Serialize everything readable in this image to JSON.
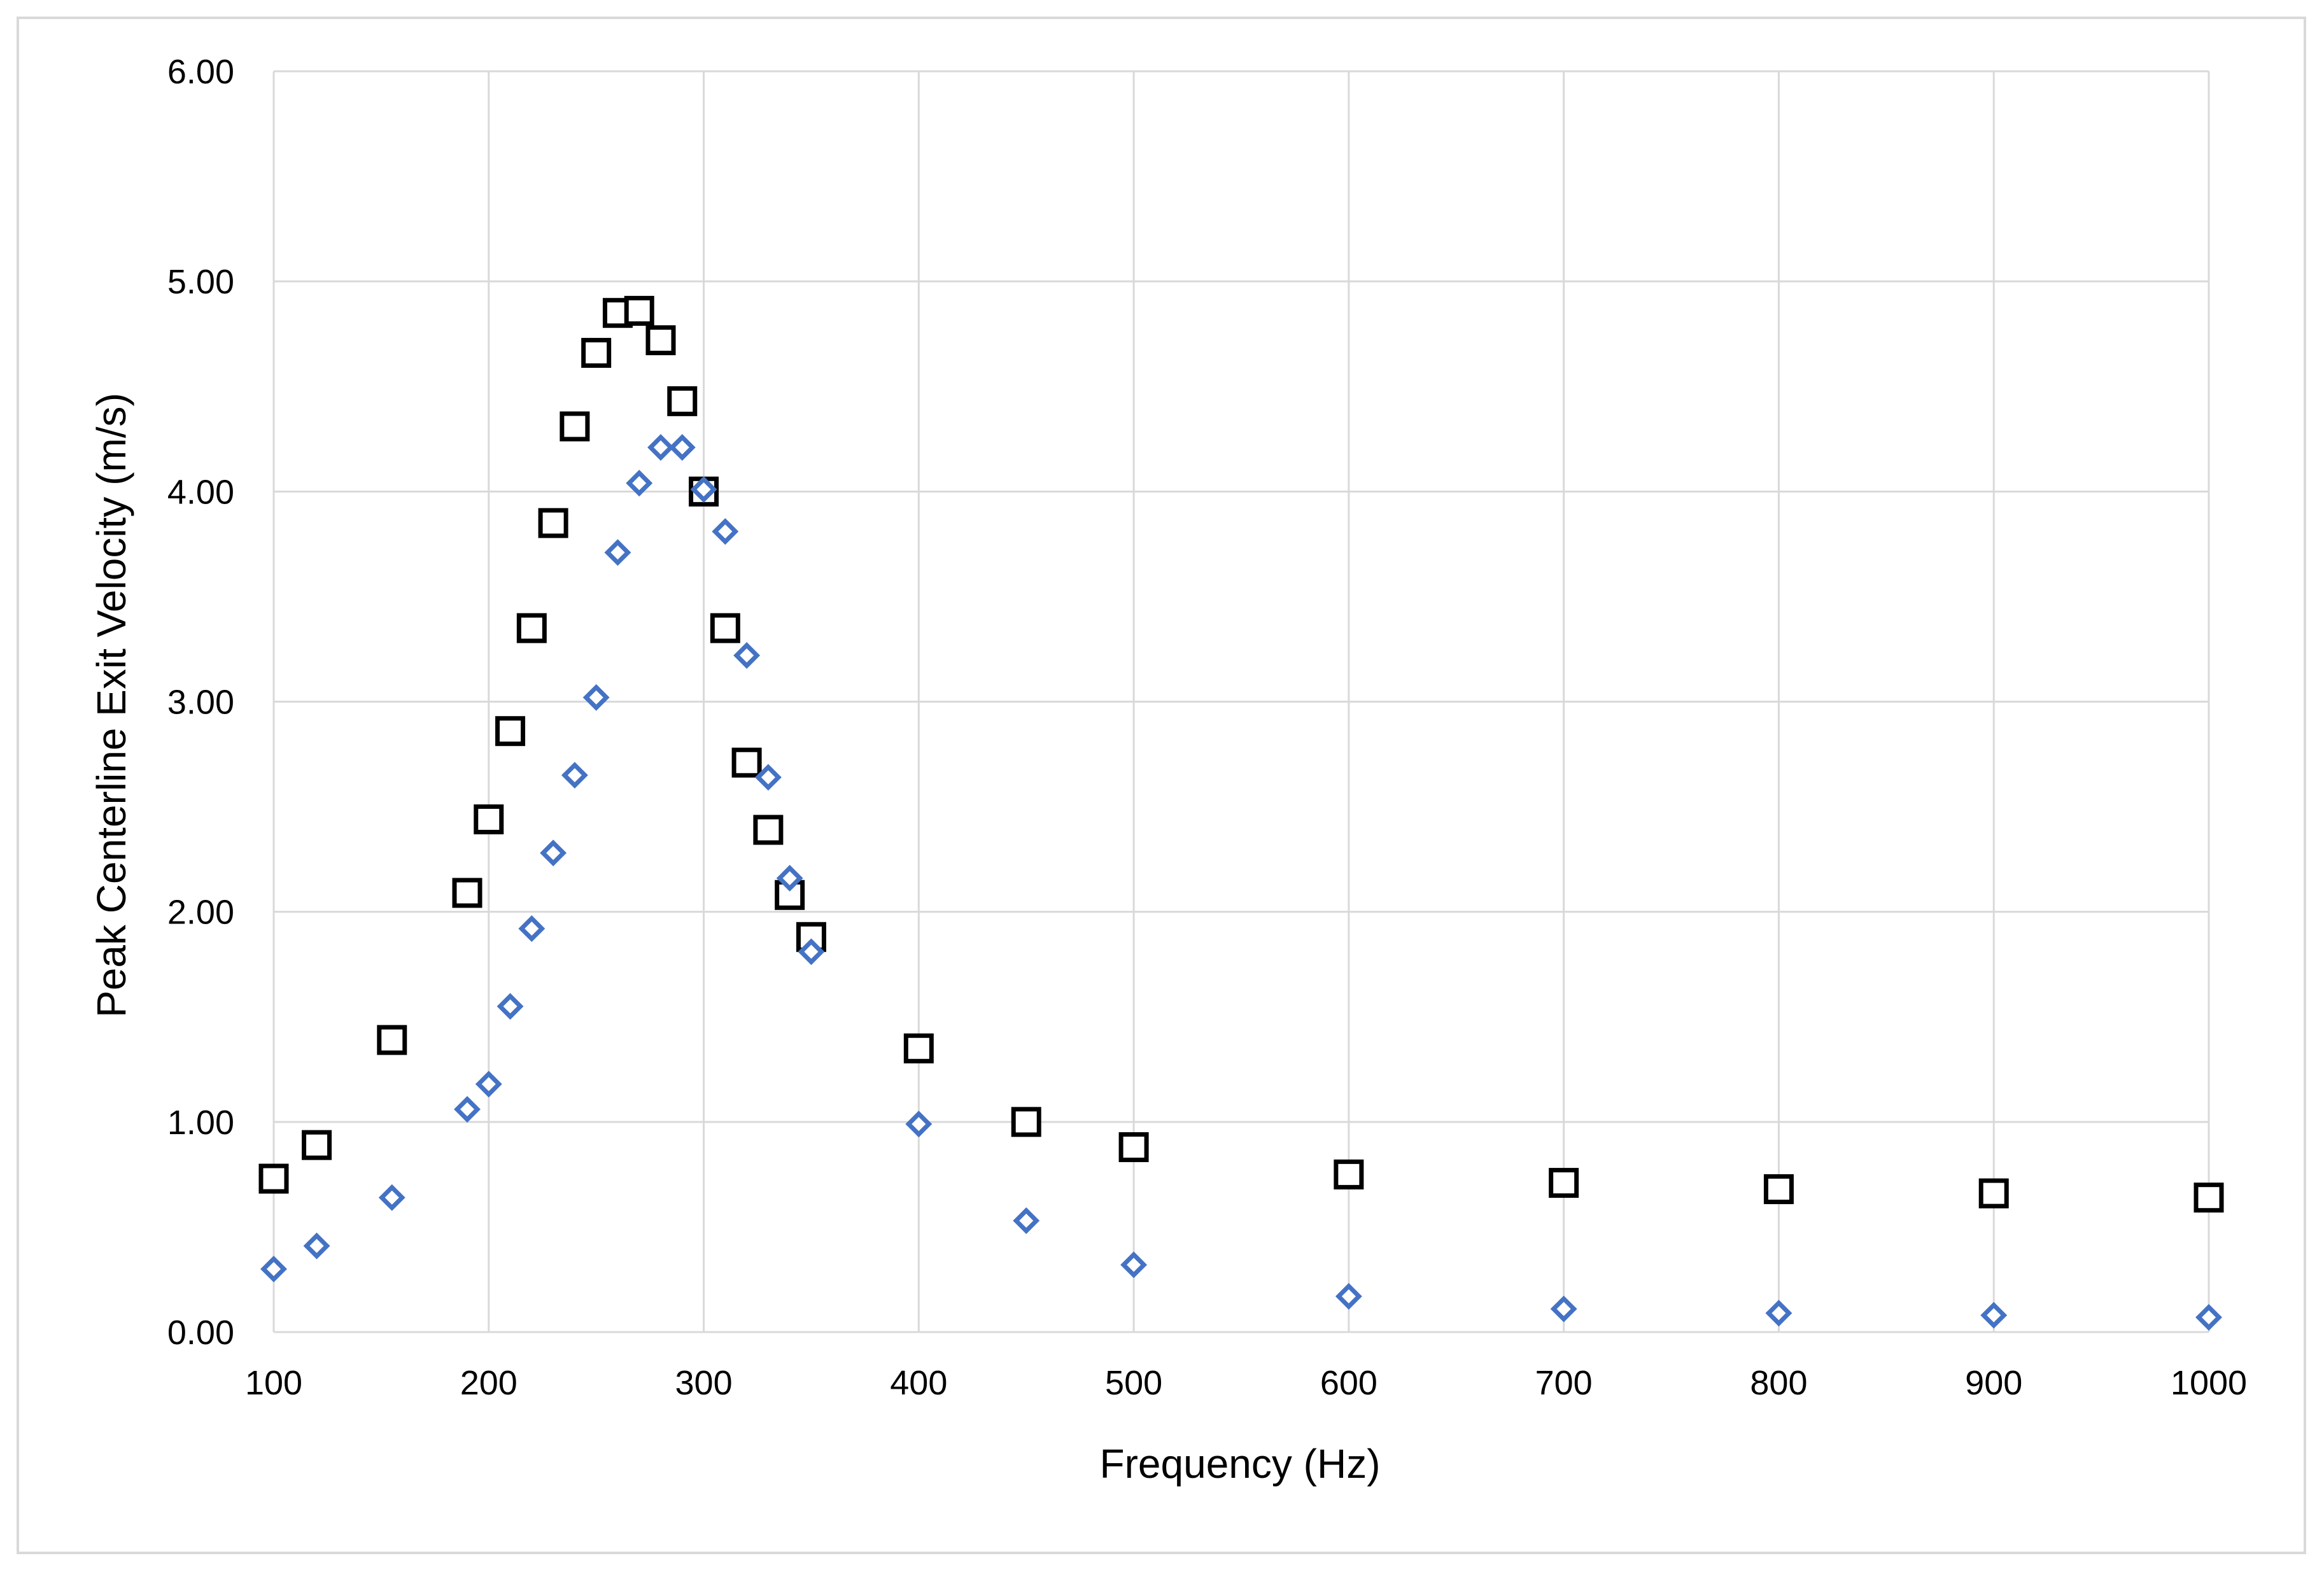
{
  "chart_data": {
    "type": "scatter",
    "title": "",
    "xlabel": "Frequency (Hz)",
    "ylabel": "Peak Centerline Exit Velocity (m/s)",
    "xlim": [
      100,
      1000
    ],
    "ylim": [
      0,
      6
    ],
    "x_ticks": [
      100,
      200,
      300,
      400,
      500,
      600,
      700,
      800,
      900,
      1000
    ],
    "x_tick_labels": [
      "100",
      "200",
      "300",
      "400",
      "500",
      "600",
      "700",
      "800",
      "900",
      "1000"
    ],
    "y_ticks": [
      0,
      1,
      2,
      3,
      4,
      5,
      6
    ],
    "y_tick_labels": [
      "0.00",
      "1.00",
      "2.00",
      "3.00",
      "4.00",
      "5.00",
      "6.00"
    ],
    "grid": true,
    "legend": "none",
    "series": [
      {
        "marker": "square",
        "color": "#000000",
        "points": [
          [
            100,
            0.73
          ],
          [
            120,
            0.89
          ],
          [
            155,
            1.39
          ],
          [
            190,
            2.09
          ],
          [
            200,
            2.44
          ],
          [
            210,
            2.86
          ],
          [
            220,
            3.35
          ],
          [
            230,
            3.85
          ],
          [
            240,
            4.31
          ],
          [
            250,
            4.66
          ],
          [
            260,
            4.85
          ],
          [
            270,
            4.86
          ],
          [
            280,
            4.72
          ],
          [
            290,
            4.43
          ],
          [
            300,
            4.0
          ],
          [
            310,
            3.35
          ],
          [
            320,
            2.71
          ],
          [
            330,
            2.39
          ],
          [
            340,
            2.08
          ],
          [
            350,
            1.88
          ],
          [
            400,
            1.35
          ],
          [
            450,
            1.0
          ],
          [
            500,
            0.88
          ],
          [
            600,
            0.75
          ],
          [
            700,
            0.71
          ],
          [
            800,
            0.68
          ],
          [
            900,
            0.66
          ],
          [
            1000,
            0.64
          ]
        ]
      },
      {
        "marker": "diamond",
        "color": "#4472C4",
        "points": [
          [
            100,
            0.3
          ],
          [
            120,
            0.41
          ],
          [
            155,
            0.64
          ],
          [
            190,
            1.06
          ],
          [
            200,
            1.18
          ],
          [
            210,
            1.55
          ],
          [
            220,
            1.92
          ],
          [
            230,
            2.28
          ],
          [
            240,
            2.65
          ],
          [
            250,
            3.02
          ],
          [
            260,
            3.71
          ],
          [
            270,
            4.04
          ],
          [
            280,
            4.21
          ],
          [
            290,
            4.21
          ],
          [
            300,
            4.01
          ],
          [
            310,
            3.81
          ],
          [
            320,
            3.22
          ],
          [
            330,
            2.64
          ],
          [
            340,
            2.16
          ],
          [
            350,
            1.81
          ],
          [
            400,
            0.99
          ],
          [
            450,
            0.53
          ],
          [
            500,
            0.32
          ],
          [
            600,
            0.17
          ],
          [
            700,
            0.11
          ],
          [
            800,
            0.09
          ],
          [
            900,
            0.08
          ],
          [
            1000,
            0.07
          ]
        ]
      }
    ]
  }
}
